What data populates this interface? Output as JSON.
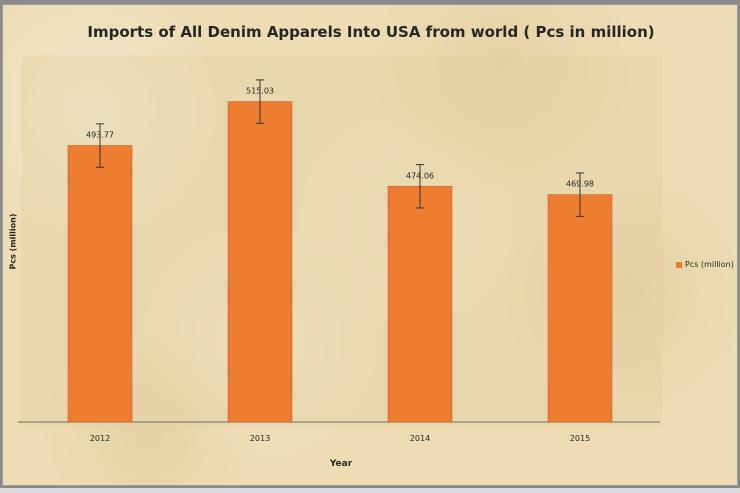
{
  "chart_data": {
    "type": "bar",
    "title": "Imports of All Denim Apparels Into USA from world ( Pcs in million)",
    "xlabel": "Year",
    "ylabel": "Pcs (million)",
    "categories": [
      "2012",
      "2013",
      "2014",
      "2015"
    ],
    "series": [
      {
        "name": "Pcs (million)",
        "values": [
          493.77,
          515.03,
          474.06,
          469.98
        ],
        "labels": [
          "493.77",
          "515.03",
          "474.06",
          "469.98"
        ],
        "error": [
          10.5,
          10.5,
          10.5,
          10.5
        ]
      }
    ],
    "ylim": [
      360,
      540
    ],
    "grid": false,
    "legend": "right",
    "error_bars": true,
    "colors": {
      "bar": "#ed7d31",
      "bar_edge": "#c0602a",
      "axis": "#6d6d6d",
      "text": "#262626"
    }
  }
}
